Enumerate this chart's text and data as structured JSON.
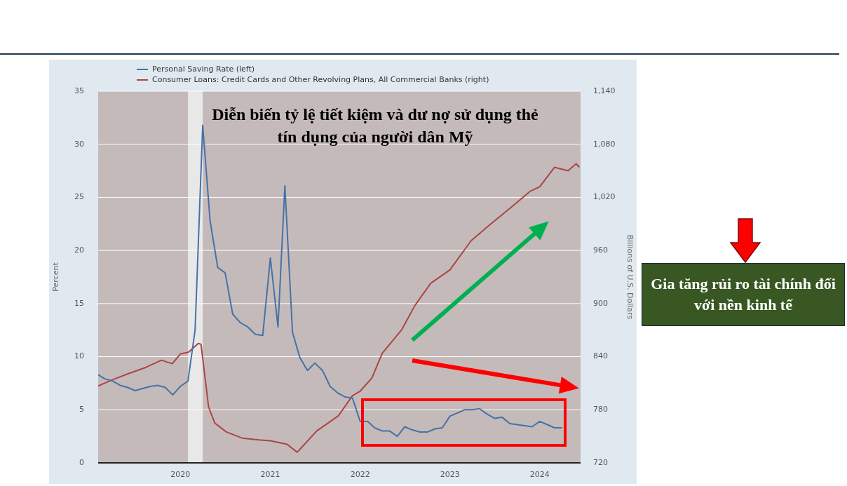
{
  "chart_data": {
    "type": "line",
    "title": "Diễn biến tỷ lệ tiết kiệm và dư nợ sử dụng thẻ tín dụng của người dân Mỹ",
    "ylabel": "Percent",
    "y2label": "Billions of U.S. Dollars",
    "legend": "top left",
    "grid": "y",
    "marker": "none",
    "line_style": "solid",
    "xlim": [
      "2019-02-01",
      "2024-06-15"
    ],
    "xticks": [
      "2020",
      "2021",
      "2022",
      "2023",
      "2024"
    ],
    "ylim": [
      0,
      35
    ],
    "yticks": [
      0,
      5,
      10,
      15,
      20,
      25,
      30,
      35
    ],
    "y2lim": [
      720,
      1140
    ],
    "y2ticks": [
      720,
      780,
      840,
      900,
      960,
      {
        "value": 1020,
        "label": "1,020"
      },
      {
        "value": 1080,
        "label": "1,080"
      },
      {
        "value": 1140,
        "label": "1,140"
      }
    ],
    "bands": [
      {
        "axis": "x",
        "from": "2020-02-01",
        "to": "2020-04-01",
        "color": "#e8e8e8"
      }
    ],
    "annotations": [
      "Gia tăng rủi ro tài chính đối với nền kinh tế"
    ],
    "series": [
      {
        "name": "Personal Saving Rate (left)",
        "color": "#4572a7",
        "axis": "y",
        "x": [
          "2019-02",
          "2019-03",
          "2019-04",
          "2019-05",
          "2019-06",
          "2019-07",
          "2019-08",
          "2019-09",
          "2019-10",
          "2019-11",
          "2019-12",
          "2020-01",
          "2020-02",
          "2020-03",
          "2020-04",
          "2020-05",
          "2020-06",
          "2020-07",
          "2020-08",
          "2020-09",
          "2020-10",
          "2020-11",
          "2020-12",
          "2021-01",
          "2021-02",
          "2021-03",
          "2021-04",
          "2021-05",
          "2021-06",
          "2021-07",
          "2021-08",
          "2021-09",
          "2021-10",
          "2021-11",
          "2021-12",
          "2022-01",
          "2022-02",
          "2022-03",
          "2022-04",
          "2022-05",
          "2022-06",
          "2022-07",
          "2022-08",
          "2022-09",
          "2022-10",
          "2022-11",
          "2022-12",
          "2023-01",
          "2023-02",
          "2023-03",
          "2023-04",
          "2023-05",
          "2023-06",
          "2023-07",
          "2023-08",
          "2023-09",
          "2023-10",
          "2023-11",
          "2023-12",
          "2024-01",
          "2024-02",
          "2024-03",
          "2024-04"
        ],
        "values": [
          8.3,
          7.9,
          7.7,
          7.3,
          7.1,
          6.8,
          7.0,
          7.2,
          7.3,
          7.1,
          6.4,
          7.2,
          7.7,
          12.5,
          31.8,
          22.8,
          18.4,
          17.9,
          14.0,
          13.2,
          12.8,
          12.1,
          12.0,
          19.3,
          12.8,
          26.1,
          12.3,
          9.9,
          8.7,
          9.4,
          8.7,
          7.2,
          6.6,
          6.2,
          6.1,
          3.9,
          3.9,
          3.3,
          3.0,
          3.0,
          2.5,
          3.4,
          3.1,
          2.9,
          2.9,
          3.2,
          3.3,
          4.4,
          4.7,
          5.0,
          5.0,
          5.1,
          4.6,
          4.2,
          4.3,
          3.7,
          3.6,
          3.5,
          3.4,
          3.9,
          3.6,
          3.3,
          3.3
        ]
      },
      {
        "name": "Consumer Loans: Credit Cards and Other Revolving Plans, All Commercial Banks (right)",
        "color": "#aa4643",
        "axis": "y2",
        "x": [
          "2019-02-01",
          "2019-04-01",
          "2019-06-06",
          "2019-08-15",
          "2019-10-16",
          "2019-11-29",
          "2020-01-01",
          "2020-02-03",
          "2020-03-14",
          "2020-03-25",
          "2020-04-25",
          "2020-05-20",
          "2020-07-06",
          "2020-09-08",
          "2020-11-15",
          "2021-01-01",
          "2021-03-10",
          "2021-04-20",
          "2021-05-20",
          "2021-07-08",
          "2021-10-04",
          "2021-12-01",
          "2022-01-01",
          "2022-02-18",
          "2022-04-01",
          "2022-06-18",
          "2022-08-12",
          "2022-10-15",
          "2023-01-01",
          "2023-03-28",
          "2023-06-12",
          "2023-09-08",
          "2023-11-24",
          "2024-01-01",
          "2024-03-01",
          "2024-04-25",
          "2024-05-28",
          "2024-06-10"
        ],
        "values": [
          807,
          814,
          821,
          828,
          836,
          832,
          843,
          845,
          855,
          854,
          783,
          765,
          755,
          748,
          746,
          745,
          741,
          732,
          741,
          756,
          773,
          796,
          801,
          816,
          844,
          870,
          898,
          923,
          938,
          971,
          989,
          1009,
          1027,
          1032,
          1054,
          1050,
          1058,
          1054
        ]
      }
    ]
  }
}
